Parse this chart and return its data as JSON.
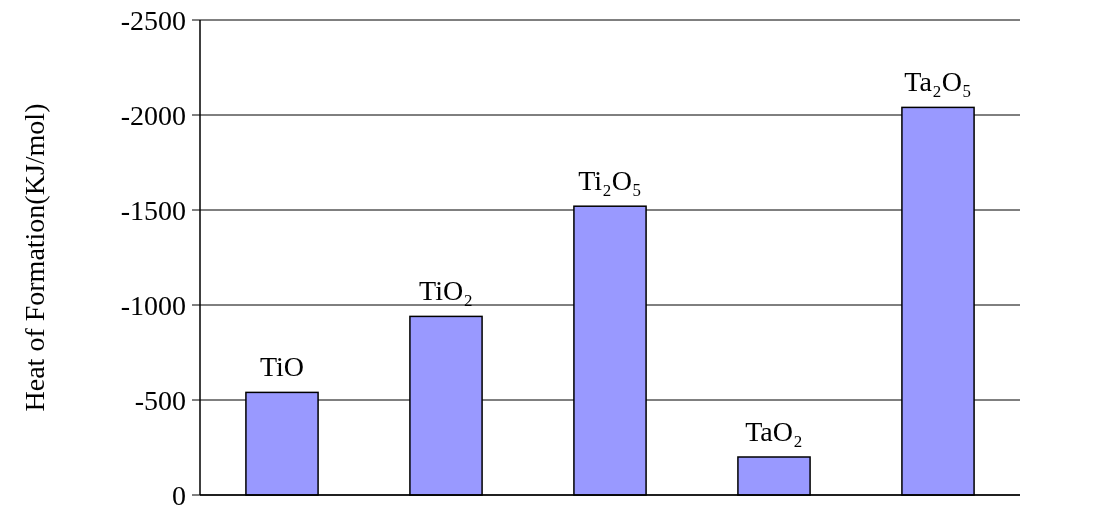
{
  "chart_data": {
    "type": "bar",
    "ylabel": "Heat of Formation(KJ/mol)",
    "categories": [
      "TiO",
      "TiO₂",
      "Ti₂O₅",
      "TaO₂",
      "Ta₂O₅"
    ],
    "values": [
      -540,
      -940,
      -1520,
      -200,
      -2040
    ],
    "color": "#9999ff",
    "ylim": [
      0,
      -2500
    ],
    "yticks": [
      0,
      -500,
      -1000,
      -1500,
      -2000,
      -2500
    ],
    "grid": "y"
  }
}
